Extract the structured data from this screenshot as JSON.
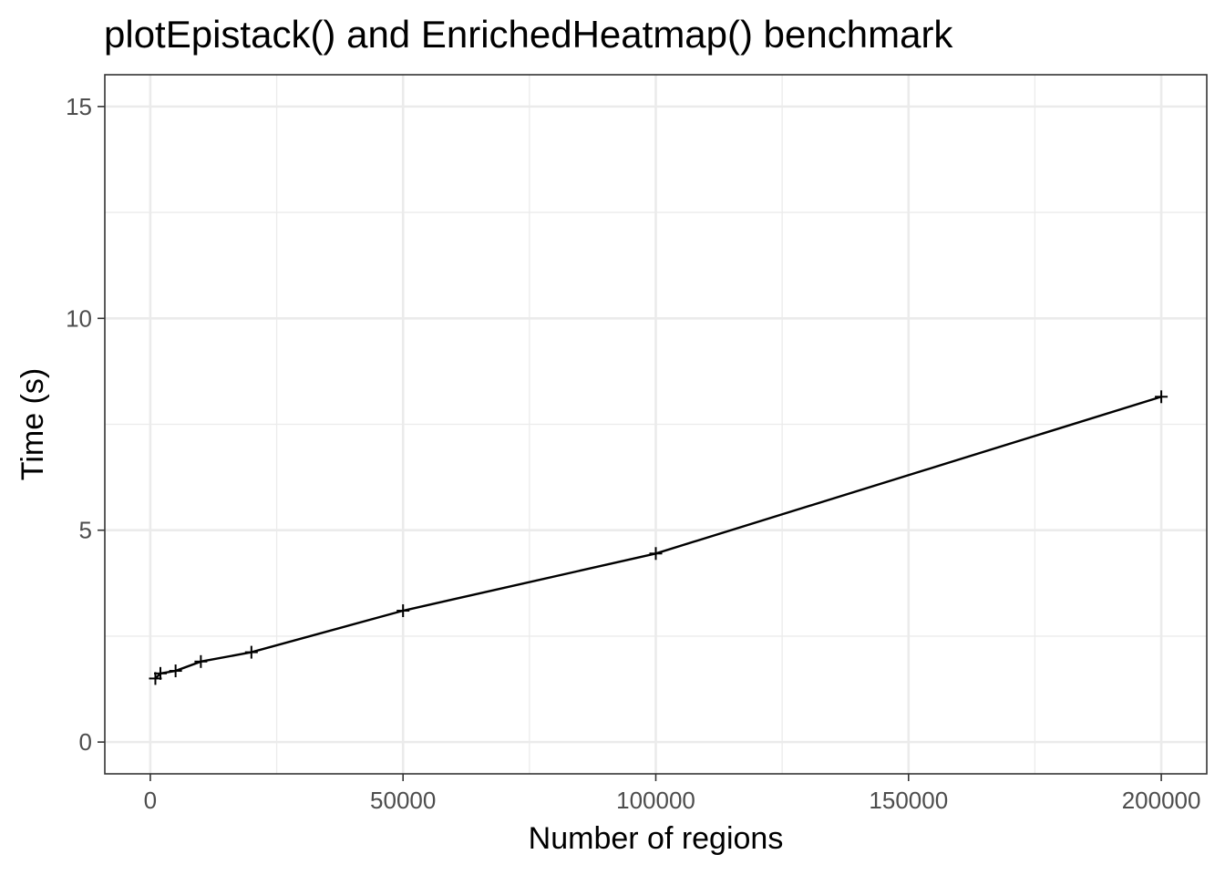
{
  "chart_data": {
    "type": "line",
    "title": "plotEpistack() and EnrichedHeatmap() benchmark",
    "xlabel": "Number of regions",
    "ylabel": "Time (s)",
    "xlim": [
      -9000,
      209000
    ],
    "ylim": [
      -0.75,
      15.75
    ],
    "x_ticks": [
      0,
      50000,
      100000,
      150000,
      200000
    ],
    "x_tick_labels": [
      "0",
      "50000",
      "100000",
      "150000",
      "200000"
    ],
    "x_minor_ticks": [
      25000,
      75000,
      125000,
      175000
    ],
    "y_ticks": [
      0,
      5,
      10,
      15
    ],
    "y_tick_labels": [
      "0",
      "5",
      "10",
      "15"
    ],
    "y_minor_ticks": [
      2.5,
      7.5,
      12.5
    ],
    "grid": true,
    "legend": "none",
    "point_shape": "plus",
    "colors": {
      "line": "#000000",
      "grid": "#ebebeb",
      "border": "#333333",
      "tick_label": "#4d4d4d"
    },
    "series": [
      {
        "x": [
          1000,
          2000,
          5000,
          10000,
          20000,
          50000,
          100000,
          200000
        ],
        "y": [
          1.5,
          1.62,
          1.68,
          1.9,
          2.12,
          3.1,
          4.45,
          8.15
        ]
      }
    ]
  }
}
